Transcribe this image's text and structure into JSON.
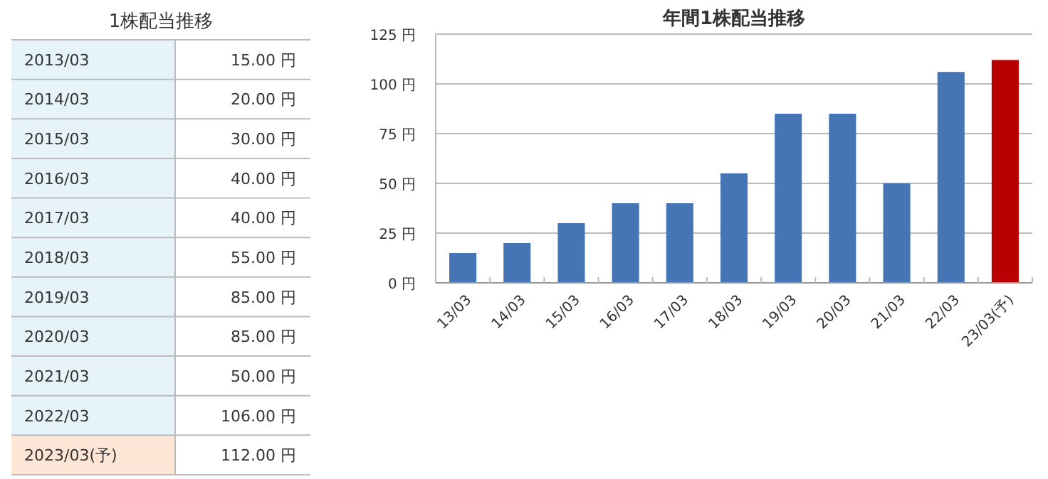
{
  "chart_data": [
    {
      "type": "other",
      "title": "1株配当推移",
      "categories": [
        "2013/03",
        "2014/03",
        "2015/03",
        "2016/03",
        "2017/03",
        "2018/03",
        "2019/03",
        "2020/03",
        "2021/03",
        "2022/03",
        "2023/03(予)"
      ],
      "value_labels": [
        "15.00 円",
        "20.00 円",
        "30.00 円",
        "40.00 円",
        "40.00 円",
        "55.00 円",
        "85.00 円",
        "85.00 円",
        "50.00 円",
        "106.00 円",
        "112.00 円"
      ],
      "colors": [
        "#e6f3f8",
        "#e6f3f8",
        "#e6f3f8",
        "#e6f3f8",
        "#e6f3f8",
        "#e6f3f8",
        "#e6f3f8",
        "#e6f3f8",
        "#e6f3f8",
        "#e6f3f8",
        "#fde6d6"
      ]
    },
    {
      "type": "bar",
      "title": "年間1株配当推移",
      "categories": [
        "13/03",
        "14/03",
        "15/03",
        "16/03",
        "17/03",
        "18/03",
        "19/03",
        "20/03",
        "21/03",
        "22/03",
        "23/03(予)"
      ],
      "values": [
        15,
        20,
        30,
        40,
        40,
        55,
        85,
        85,
        50,
        106,
        112
      ],
      "colors": [
        "#4675b6",
        "#4675b6",
        "#4675b6",
        "#4675b6",
        "#4675b6",
        "#4675b6",
        "#4675b6",
        "#4675b6",
        "#4675b6",
        "#4675b6",
        "#b80000"
      ],
      "ylim": [
        0,
        125
      ],
      "yticks": [
        {
          "value": 0,
          "label": "0 円"
        },
        {
          "value": 25,
          "label": "25 円"
        },
        {
          "value": 50,
          "label": "50 円"
        },
        {
          "value": 75,
          "label": "75 円"
        },
        {
          "value": 100,
          "label": "100 円"
        },
        {
          "value": 125,
          "label": "125 円"
        }
      ],
      "grid": "y"
    }
  ]
}
